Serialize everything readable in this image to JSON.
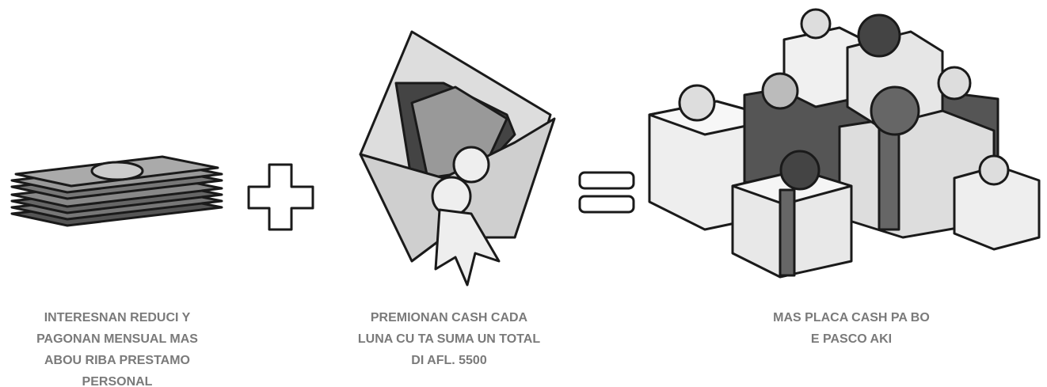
{
  "captions": [
    {
      "lines": [
        "INTERESNAN REDUCI Y",
        "PAGONAN MENSUAL MAS",
        "ABOU RIBA PRESTAMO",
        "PERSONAL"
      ]
    },
    {
      "lines": [
        "PREMIONAN CASH CADA",
        "LUNA CU TA SUMA UN TOTAL",
        "DI AFL. 5500"
      ]
    },
    {
      "lines": [
        "MAS PLACA CASH PA BO",
        "E PASCO AKI"
      ]
    }
  ]
}
